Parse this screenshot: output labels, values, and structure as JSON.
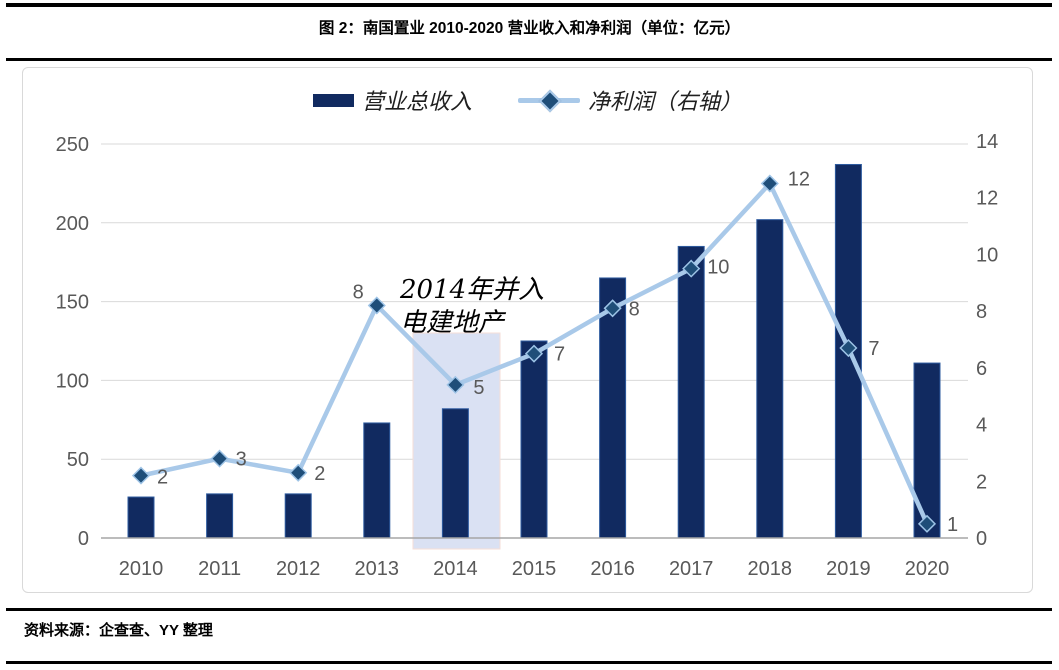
{
  "title": "图 2：南国置业 2010-2020 营业收入和净利润（单位：亿元）",
  "source": "资料来源：企查查、YY 整理",
  "legend": [
    {
      "label": "营业总收入",
      "swatch": "bar-swatch"
    },
    {
      "label": "净利润（右轴）",
      "swatch": "line-diamond-swatch"
    }
  ],
  "annotation": {
    "lines": [
      "2014年并入",
      "电建地产"
    ]
  },
  "colors": {
    "bar": "#112a60",
    "bar_border": "#2e5b9f",
    "line": "#a9c9e9",
    "marker_fill": "#1f4e79",
    "marker_stroke": "#9dc3e6",
    "grid": "#d9d9d9",
    "baseline": "#a6a6a6",
    "axis_text": "#595959",
    "label_text": "#595959",
    "band": "#dae1f3",
    "band_border": "#f5ded7",
    "annotation_text": "#000000"
  },
  "chart_data": {
    "type": "bar",
    "subtype": "bar+line combo, dual axis",
    "title": "图 2：南国置业 2010-2020 营业收入和净利润（单位：亿元）",
    "categories": [
      "2010",
      "2011",
      "2012",
      "2013",
      "2014",
      "2015",
      "2016",
      "2017",
      "2018",
      "2019",
      "2020"
    ],
    "series": [
      {
        "name": "营业总收入",
        "type": "bar",
        "axis": "left",
        "values": [
          26,
          28,
          28,
          73,
          82,
          125,
          165,
          185,
          202,
          237,
          111
        ]
      },
      {
        "name": "净利润（右轴）",
        "type": "line",
        "axis": "right",
        "values": [
          2.2,
          2.8,
          2.3,
          8.2,
          5.4,
          6.5,
          8.1,
          9.5,
          12.5,
          6.7,
          0.5
        ],
        "labels": [
          "2",
          "3",
          "2",
          "8",
          "5",
          "7",
          "8",
          "10",
          "12",
          "7",
          "1"
        ]
      }
    ],
    "left_axis": {
      "min": 0,
      "max": 250,
      "step": 50,
      "ticks": [
        "0",
        "50",
        "100",
        "150",
        "200",
        "250"
      ]
    },
    "right_axis": {
      "min": 0,
      "max": 14,
      "step": 2,
      "ticks": [
        "0",
        "2",
        "4",
        "6",
        "8",
        "10",
        "12",
        "14"
      ]
    },
    "grid": "horizontal only, aligned to left axis",
    "legend_position": "top center",
    "highlight_band_category": "2014"
  }
}
